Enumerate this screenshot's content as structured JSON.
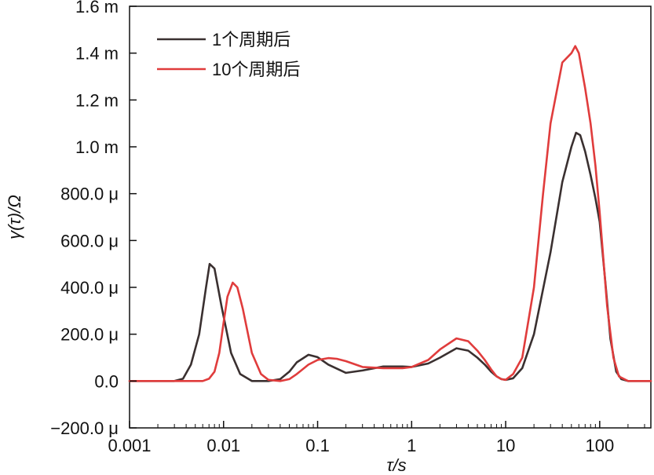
{
  "chart_data": {
    "type": "line",
    "xlabel": "τ/s",
    "ylabel": "γ(τ)/Ω",
    "x_scale": "log",
    "xlim": [
      0.001,
      350
    ],
    "ylim": [
      -0.0002,
      0.0016
    ],
    "x_ticks": [
      {
        "value": 0.001,
        "label": "0.001"
      },
      {
        "value": 0.01,
        "label": "0.01"
      },
      {
        "value": 0.1,
        "label": "0.1"
      },
      {
        "value": 1,
        "label": "1"
      },
      {
        "value": 10,
        "label": "10"
      },
      {
        "value": 100,
        "label": "100"
      }
    ],
    "y_ticks": [
      {
        "value": -0.0002,
        "label": "−200.0 μ"
      },
      {
        "value": 0.0,
        "label": "0.0"
      },
      {
        "value": 0.0002,
        "label": "200.0 μ"
      },
      {
        "value": 0.0004,
        "label": "400.0 μ"
      },
      {
        "value": 0.0006,
        "label": "600.0 μ"
      },
      {
        "value": 0.0008,
        "label": "800.0 μ"
      },
      {
        "value": 0.001,
        "label": "1.0 m"
      },
      {
        "value": 0.0012,
        "label": "1.2 m"
      },
      {
        "value": 0.0014,
        "label": "1.4 m"
      },
      {
        "value": 0.0016,
        "label": "1.6 m"
      }
    ],
    "grid": false,
    "legend_position": "top-left",
    "series": [
      {
        "name": "1个周期后",
        "color": "#3a3030",
        "x": [
          0.001,
          0.003,
          0.0037,
          0.0045,
          0.0055,
          0.0065,
          0.0071,
          0.008,
          0.0095,
          0.012,
          0.015,
          0.02,
          0.03,
          0.04,
          0.05,
          0.06,
          0.08,
          0.1,
          0.13,
          0.2,
          0.3,
          0.5,
          0.8,
          1.0,
          1.5,
          2.0,
          3.0,
          4.0,
          5.0,
          6.0,
          7.0,
          8.0,
          9.0,
          10.0,
          12.0,
          15.0,
          20.0,
          30.0,
          40.0,
          50.0,
          56.0,
          62.0,
          70.0,
          80.0,
          90.0,
          100.0,
          115.0,
          130.0,
          150.0,
          170.0,
          200.0,
          350.0
        ],
        "y": [
          0.0,
          0.0,
          1e-05,
          7e-05,
          0.0002,
          0.0004,
          0.0005,
          0.00048,
          0.00032,
          0.00012,
          3e-05,
          0.0,
          0.0,
          8e-06,
          4e-05,
          8e-05,
          0.000112,
          0.000102,
          7e-05,
          3.5e-05,
          4.5e-05,
          6.2e-05,
          6.2e-05,
          6e-05,
          7.5e-05,
          0.0001,
          0.00014,
          0.00013,
          0.0001,
          7e-05,
          4e-05,
          2e-05,
          8e-06,
          5e-06,
          1.2e-05,
          5.5e-05,
          0.0002,
          0.00055,
          0.00085,
          0.001,
          0.00106,
          0.00105,
          0.00098,
          0.00088,
          0.00078,
          0.00068,
          0.00042,
          0.00018,
          4e-05,
          8e-06,
          0.0,
          0.0
        ]
      },
      {
        "name": "10个周期后",
        "color": "#e03c3c",
        "x": [
          0.001,
          0.006,
          0.007,
          0.008,
          0.009,
          0.01,
          0.011,
          0.0125,
          0.014,
          0.016,
          0.02,
          0.025,
          0.03,
          0.04,
          0.05,
          0.06,
          0.08,
          0.1,
          0.13,
          0.16,
          0.2,
          0.3,
          0.5,
          0.8,
          1.0,
          1.5,
          2.0,
          3.0,
          4.0,
          5.0,
          6.0,
          7.0,
          8.0,
          9.0,
          10.0,
          12.0,
          15.0,
          20.0,
          25.0,
          30.0,
          40.0,
          50.0,
          55.0,
          60.0,
          70.0,
          80.0,
          90.0,
          100.0,
          120.0,
          140.0,
          160.0,
          200.0,
          350.0
        ],
        "y": [
          0.0,
          0.0,
          1e-05,
          4e-05,
          0.00012,
          0.00025,
          0.00036,
          0.00042,
          0.0004,
          0.00031,
          0.00012,
          3e-05,
          5e-06,
          0.0,
          8e-06,
          3e-05,
          7e-05,
          9e-05,
          9.8e-05,
          9.5e-05,
          8.5e-05,
          6e-05,
          5.5e-05,
          5.5e-05,
          6e-05,
          9e-05,
          0.000135,
          0.000182,
          0.00017,
          0.00013,
          9e-05,
          5e-05,
          2e-05,
          8e-06,
          5e-06,
          3e-05,
          0.0001,
          0.0004,
          0.0008,
          0.0011,
          0.00136,
          0.0014,
          0.00143,
          0.0014,
          0.00125,
          0.0011,
          0.00092,
          0.00072,
          0.00032,
          0.0001,
          2e-05,
          0.0,
          0.0
        ]
      }
    ]
  }
}
